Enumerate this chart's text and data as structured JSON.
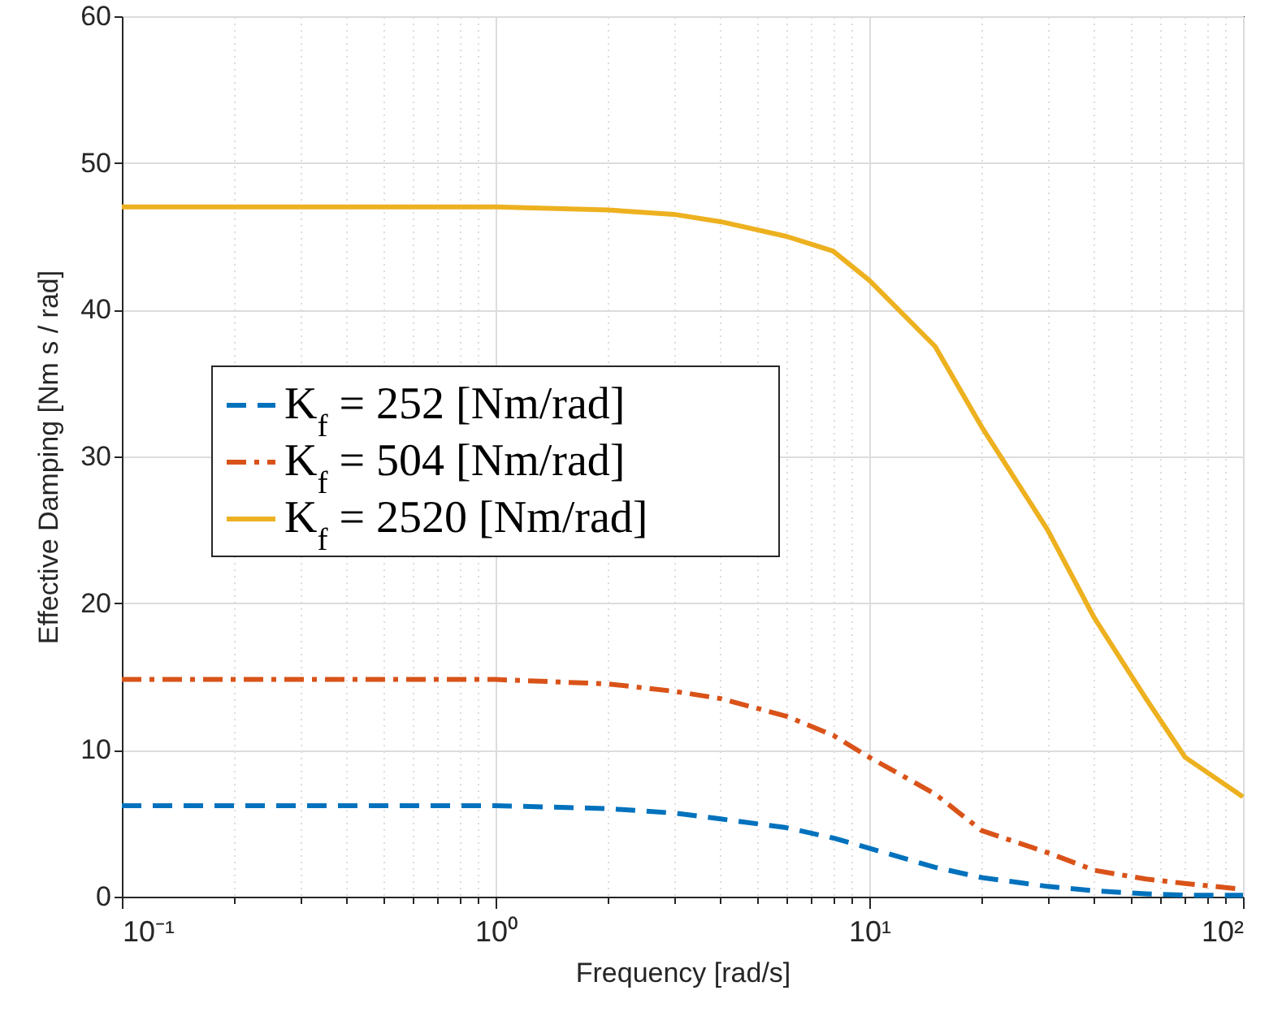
{
  "chart_data": {
    "type": "line",
    "xlabel": "Frequency [rad/s]",
    "ylabel": "Effective Damping [Nm s / rad]",
    "log": "x",
    "grid": true,
    "legend": "left",
    "xlim": [
      0.1,
      100
    ],
    "ylim": [
      0,
      60
    ],
    "yticks": [
      0,
      10,
      20,
      30,
      40,
      50,
      60
    ],
    "xticks": [
      {
        "value": 0.1,
        "label": "10⁻¹"
      },
      {
        "value": 0.2,
        "label": null
      },
      {
        "value": 0.3,
        "label": null
      },
      {
        "value": 0.4,
        "label": null
      },
      {
        "value": 0.5,
        "label": null
      },
      {
        "value": 0.6,
        "label": null
      },
      {
        "value": 0.7,
        "label": null
      },
      {
        "value": 0.8,
        "label": null
      },
      {
        "value": 0.9,
        "label": null
      },
      {
        "value": 1,
        "label": "10⁰"
      },
      {
        "value": 2,
        "label": null
      },
      {
        "value": 3,
        "label": null
      },
      {
        "value": 4,
        "label": null
      },
      {
        "value": 5,
        "label": null
      },
      {
        "value": 6,
        "label": null
      },
      {
        "value": 7,
        "label": null
      },
      {
        "value": 8,
        "label": null
      },
      {
        "value": 9,
        "label": null
      },
      {
        "value": 10,
        "label": "10¹"
      },
      {
        "value": 20,
        "label": null
      },
      {
        "value": 30,
        "label": null
      },
      {
        "value": 40,
        "label": null
      },
      {
        "value": 50,
        "label": null
      },
      {
        "value": 60,
        "label": null
      },
      {
        "value": 70,
        "label": null
      },
      {
        "value": 80,
        "label": null
      },
      {
        "value": 90,
        "label": null
      },
      {
        "value": 100,
        "label": "10²"
      }
    ],
    "x": [
      0.1,
      0.3,
      1,
      2,
      3,
      4,
      6,
      8,
      10,
      15,
      20,
      30,
      40,
      55,
      70,
      100
    ],
    "series": [
      {
        "name": "K$_{f}$ = 252 [Nm/rad]",
        "color": "#0072bd",
        "line_style": "dashed",
        "values": [
          6.2,
          6.2,
          6.2,
          6.0,
          5.7,
          5.3,
          4.7,
          4.0,
          3.3,
          2.0,
          1.3,
          0.7,
          0.4,
          0.2,
          0.1,
          0.1
        ]
      },
      {
        "name": "K$_{f}$ = 504 [Nm/rad]",
        "color": "#d95319",
        "line_style": "dashdot",
        "values": [
          14.8,
          14.8,
          14.8,
          14.5,
          14.0,
          13.5,
          12.3,
          11.0,
          9.5,
          7.0,
          4.5,
          3.0,
          1.8,
          1.2,
          0.9,
          0.5
        ]
      },
      {
        "name": "K$_{f}$ = 2520 [Nm/rad]",
        "color": "#edb120",
        "line_style": "solid",
        "values": [
          47.0,
          47.0,
          47.0,
          46.8,
          46.5,
          46.0,
          45.0,
          44.0,
          42.0,
          37.5,
          32.0,
          25.0,
          19.0,
          13.5,
          9.5,
          6.8
        ]
      }
    ]
  }
}
